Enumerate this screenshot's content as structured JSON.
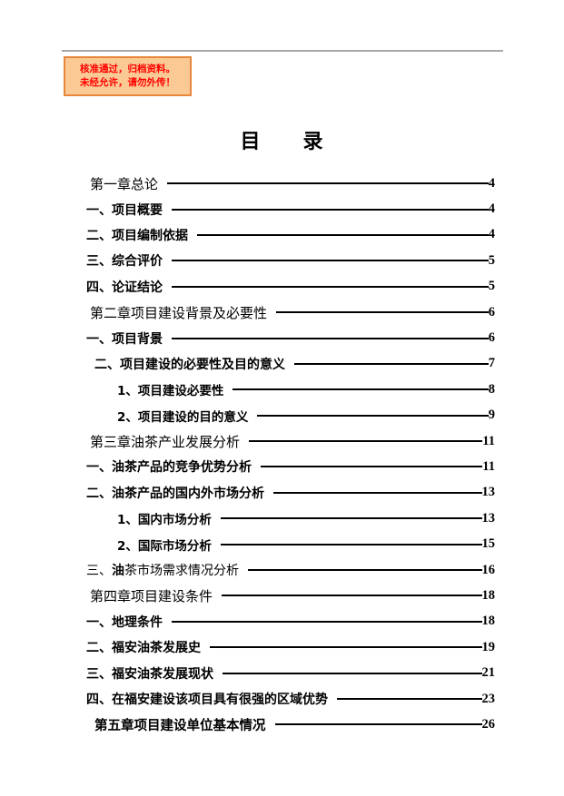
{
  "stamp": {
    "line1": "核准通过，归档资料。",
    "line2": "未经允许，请勿外传！",
    "border_color": "#e8873c",
    "background_color": "#fbc993",
    "text_color": "#ff0000"
  },
  "title": "目　　录",
  "toc": {
    "entries": [
      {
        "level": "chapter",
        "page": "4",
        "parts": [
          {
            "text": "第一章总论",
            "bold": false
          }
        ]
      },
      {
        "level": "item",
        "page": "4",
        "parts": [
          {
            "text": "一、项目概要",
            "bold": true
          }
        ]
      },
      {
        "level": "item",
        "page": "4",
        "parts": [
          {
            "text": "二、项目编制依据",
            "bold": true
          }
        ]
      },
      {
        "level": "item",
        "page": "5",
        "parts": [
          {
            "text": "三、综合评价",
            "bold": true
          }
        ]
      },
      {
        "level": "item",
        "page": "5",
        "parts": [
          {
            "text": "四、论证结论",
            "bold": true
          }
        ]
      },
      {
        "level": "chapter",
        "page": "6",
        "parts": [
          {
            "text": "第二章项目建设背景及必要性",
            "bold": false
          }
        ]
      },
      {
        "level": "item",
        "page": "6",
        "parts": [
          {
            "text": "一、项目背景",
            "bold": true
          }
        ]
      },
      {
        "level": "item-indent",
        "page": "7",
        "parts": [
          {
            "text": "二、项目建设的必要性及目的意义",
            "bold": true
          }
        ]
      },
      {
        "level": "sub",
        "page": "8",
        "parts": [
          {
            "text": "1、项目建设必要性",
            "bold": true
          }
        ]
      },
      {
        "level": "sub",
        "page": "9",
        "parts": [
          {
            "text": "2、项目建设的目的意义",
            "bold": true
          }
        ]
      },
      {
        "level": "chapter",
        "page": "11",
        "parts": [
          {
            "text": "第三章油茶产业发展分析",
            "bold": false
          }
        ]
      },
      {
        "level": "item",
        "page": "11",
        "parts": [
          {
            "text": "一、油茶产品的竞争优势分析",
            "bold": true
          }
        ]
      },
      {
        "level": "item",
        "page": "13",
        "parts": [
          {
            "text": "二、油茶产品的国内外市场分析",
            "bold": true
          }
        ]
      },
      {
        "level": "sub",
        "page": "13",
        "parts": [
          {
            "text": "1、国内市场分析",
            "bold": true
          }
        ]
      },
      {
        "level": "sub",
        "page": "15",
        "parts": [
          {
            "text": "2、国际市场分析",
            "bold": true
          }
        ]
      },
      {
        "level": "item",
        "page": "16",
        "parts": [
          {
            "text": "三、",
            "bold": false
          },
          {
            "text": "油",
            "bold": true
          },
          {
            "text": "茶市场需求情况分析",
            "bold": false
          }
        ]
      },
      {
        "level": "chapter",
        "page": "18",
        "parts": [
          {
            "text": "第四章项目建设条件",
            "bold": false
          }
        ]
      },
      {
        "level": "item",
        "page": "18",
        "parts": [
          {
            "text": "一、地理条件",
            "bold": true
          }
        ]
      },
      {
        "level": "item",
        "page": "19",
        "parts": [
          {
            "text": "二、福安油茶发展史",
            "bold": true
          }
        ]
      },
      {
        "level": "item",
        "page": "21",
        "parts": [
          {
            "text": "三、福安油茶发展现状",
            "bold": true
          }
        ]
      },
      {
        "level": "item",
        "page": "23",
        "parts": [
          {
            "text": "四、在福安建设该项目具有很强的区域优势",
            "bold": true
          }
        ]
      },
      {
        "level": "chapter-indent",
        "page": "26",
        "parts": [
          {
            "text": "第五章项目建设单位基本情况",
            "bold": true
          }
        ]
      }
    ]
  }
}
